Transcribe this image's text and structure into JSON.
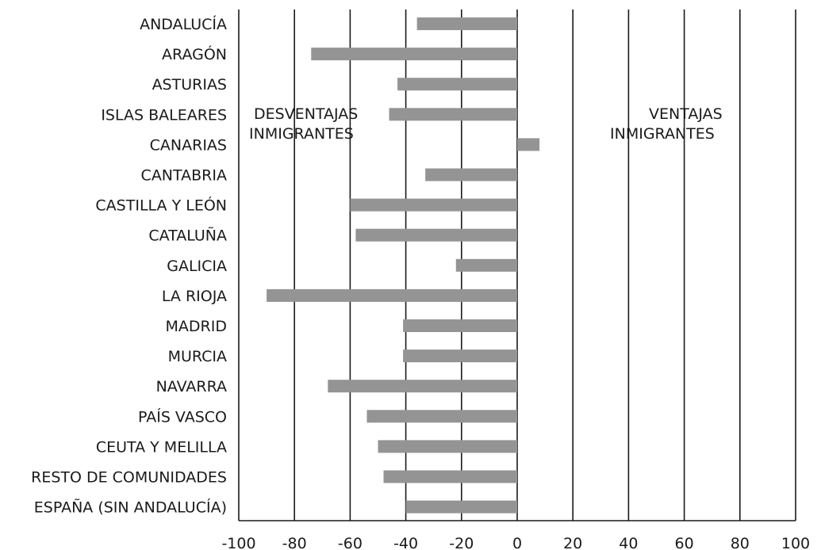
{
  "chart_data": {
    "type": "bar",
    "orientation": "horizontal",
    "title": "",
    "xlabel": "",
    "ylabel": "",
    "categories": [
      "ANDALUCÍA",
      "ARAGÓN",
      "ASTURIAS",
      "ISLAS BALEARES",
      "CANARIAS",
      "CANTABRIA",
      "CASTILLA Y LEÓN",
      "CATALUÑA",
      "GALICIA",
      "LA RIOJA",
      "MADRID",
      "MURCIA",
      "NAVARRA",
      "PAÍS VASCO",
      "CEUTA Y MELILLA",
      "RESTO DE COMUNIDADES",
      "ESPAÑA (SIN ANDALUCÍA)"
    ],
    "values": [
      -36,
      -74,
      -43,
      -46,
      8,
      -33,
      -60,
      -58,
      -22,
      -90,
      -41,
      -41,
      -68,
      -54,
      -50,
      -48,
      -40
    ],
    "xlim": [
      -100,
      100
    ],
    "xticks": [
      -100,
      -80,
      -60,
      -40,
      -20,
      0,
      20,
      40,
      60,
      80,
      100
    ],
    "grid": true,
    "bar_color": "#949494",
    "annotations": [
      {
        "text": [
          "DESVENTAJAS",
          "INMIGRANTES"
        ],
        "side": "left"
      },
      {
        "text": [
          "VENTAJAS",
          "INMIGRANTES"
        ],
        "side": "right"
      }
    ]
  }
}
